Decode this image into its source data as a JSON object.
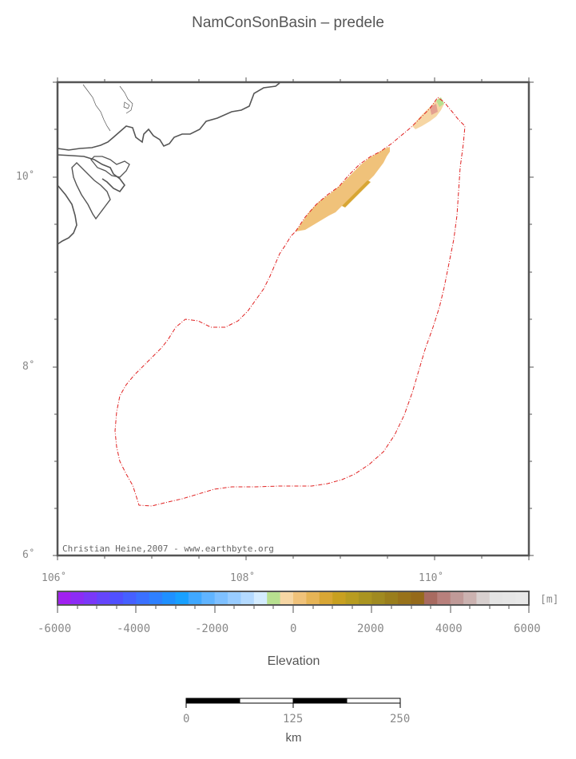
{
  "title": "NamConSonBasin – predele",
  "credit": "Christian Heine,2007 - www.earthbyte.org",
  "map": {
    "lat_labels": [
      "10˚",
      "8˚",
      "6˚"
    ],
    "lon_labels": [
      "106˚",
      "108˚",
      "110˚"
    ],
    "lon_range": [
      106,
      111
    ],
    "lat_range": [
      6,
      11
    ],
    "boundary_color": "#e02020",
    "coast_color": "#555555",
    "fill_color": "#f0c27a"
  },
  "colorbar": {
    "unit": "[m]",
    "tick_labels": [
      "-6000",
      "-4000",
      "-2000",
      "0",
      "2000",
      "4000",
      "6000"
    ],
    "colors": [
      "#a020f0",
      "#8c2cf5",
      "#7a38f8",
      "#6545fb",
      "#5050ff",
      "#4560ff",
      "#3a70ff",
      "#2e80ff",
      "#1f90ff",
      "#18a0ff",
      "#40a8ff",
      "#60b4ff",
      "#7ec0ff",
      "#98ccff",
      "#b4daff",
      "#d4ecff",
      "#b8e090",
      "#f6d6a4",
      "#f0c27a",
      "#e6b456",
      "#d8a634",
      "#c8a020",
      "#b89c20",
      "#aa9420",
      "#a08a20",
      "#9a7e1c",
      "#98721a",
      "#956a1a",
      "#a86a60",
      "#b8807c",
      "#c09a98",
      "#cbb2b0",
      "#d8d0cf",
      "#e4e4e4",
      "#e6e6e6",
      "#e8e8e8"
    ],
    "title": "Elevation"
  },
  "scalebar": {
    "labels": [
      "0",
      "125",
      "250"
    ],
    "unit": "km"
  }
}
